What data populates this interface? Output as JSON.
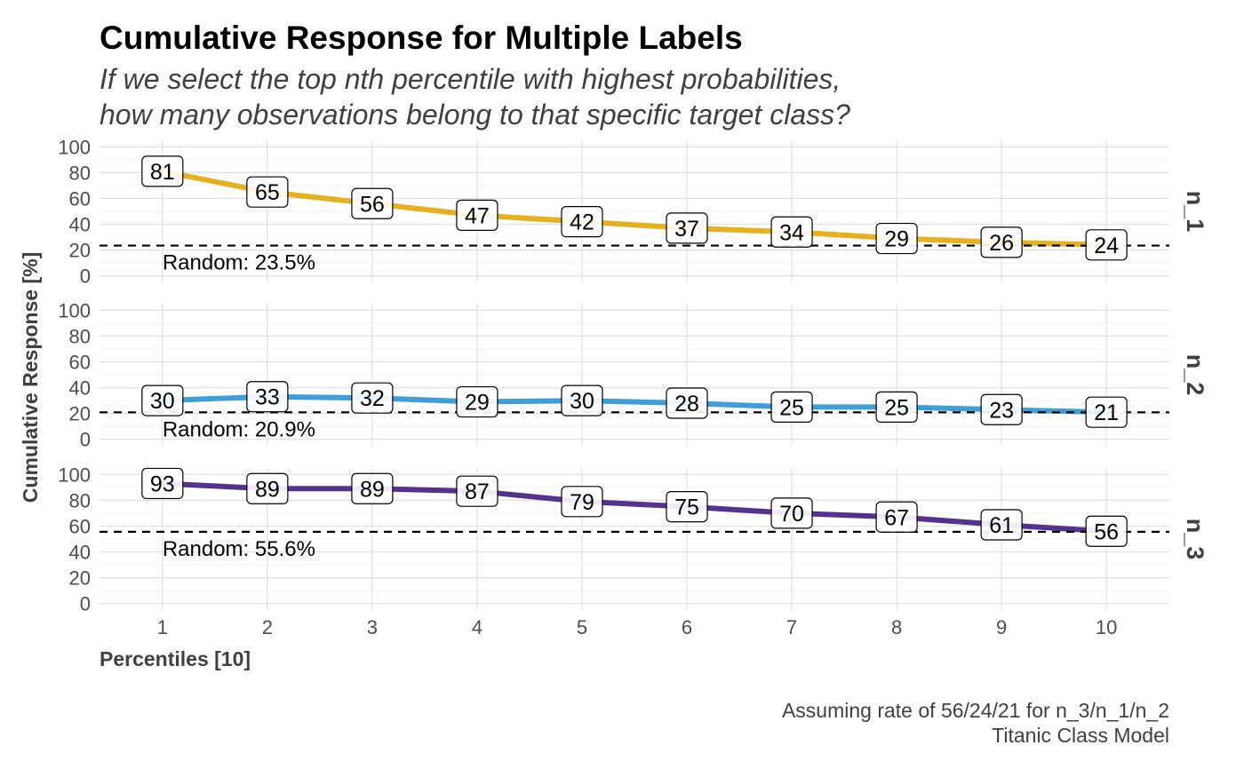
{
  "chart_data": {
    "type": "line",
    "title": "Cumulative Response for Multiple Labels",
    "subtitle_lines": [
      "If we select the top nth percentile with highest probabilities,",
      "how many observations belong to that specific target class?"
    ],
    "xlabel": "Percentiles [10]",
    "ylabel": "Cumulative Response [%]",
    "x": [
      1,
      2,
      3,
      4,
      5,
      6,
      7,
      8,
      9,
      10
    ],
    "xlim": [
      0.4,
      10.6
    ],
    "ylim": [
      0,
      100
    ],
    "y_ticks": [
      0,
      20,
      40,
      60,
      80,
      100
    ],
    "grid": true,
    "facet_strip_position": "right",
    "random_label_prefix": "Random: ",
    "panels": [
      {
        "name": "n_1",
        "color": "#E6B01E",
        "values": [
          81,
          65,
          56,
          47,
          42,
          37,
          34,
          29,
          26,
          24
        ],
        "random": 23.5,
        "random_label": "23.5%"
      },
      {
        "name": "n_2",
        "color": "#3F9ED6",
        "values": [
          30,
          33,
          32,
          29,
          30,
          28,
          25,
          25,
          23,
          21
        ],
        "random": 20.9,
        "random_label": "20.9%"
      },
      {
        "name": "n_3",
        "color": "#56328F",
        "values": [
          93,
          89,
          89,
          87,
          79,
          75,
          70,
          67,
          61,
          56
        ],
        "random": 55.6,
        "random_label": "55.6%"
      }
    ],
    "caption_lines": [
      "Assuming rate of 56/24/21 for n_3/n_1/n_2",
      "Titanic Class Model"
    ]
  }
}
